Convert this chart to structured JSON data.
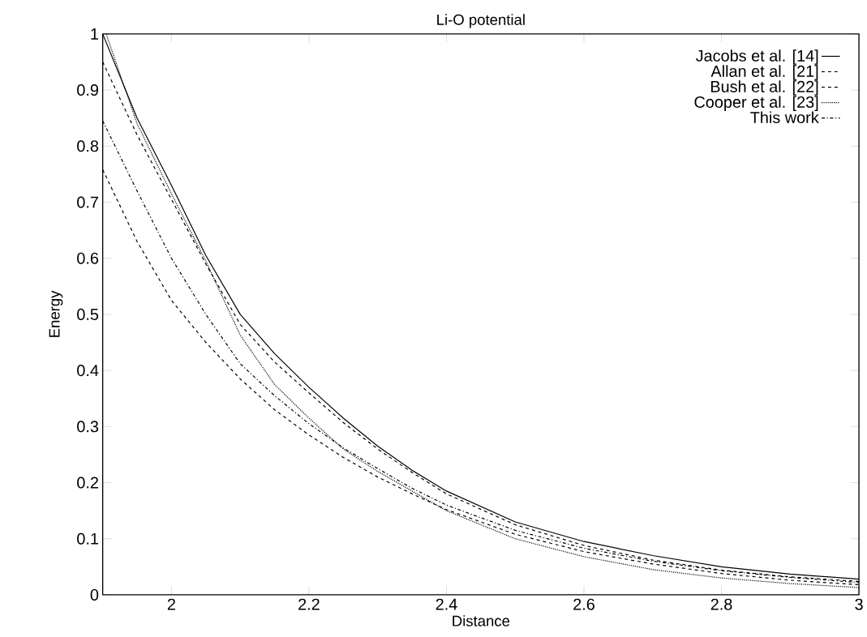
{
  "chart_data": {
    "type": "line",
    "title": "Li-O potential",
    "xlabel": "Distance",
    "ylabel": "Energy",
    "xlim": [
      1.9,
      3
    ],
    "ylim": [
      0,
      1
    ],
    "xticks": [
      2,
      2.2,
      2.4,
      2.6,
      2.8,
      3
    ],
    "yticks": [
      0,
      0.1,
      0.2,
      0.3,
      0.4,
      0.5,
      0.6,
      0.7,
      0.8,
      0.9,
      1
    ],
    "grid": false,
    "legend": "top right",
    "marker": "none",
    "x": [
      1.9,
      1.95,
      2.0,
      2.05,
      2.1,
      2.15,
      2.2,
      2.25,
      2.3,
      2.35,
      2.4,
      2.5,
      2.6,
      2.7,
      2.8,
      2.9,
      3.0
    ],
    "series": [
      {
        "name": "Jacobs et al. [14]",
        "color": "#000000",
        "line_style": "solid",
        "values": [
          1.0,
          0.85,
          0.73,
          0.605,
          0.5,
          0.43,
          0.37,
          0.315,
          0.265,
          0.222,
          0.185,
          0.13,
          0.095,
          0.07,
          0.05,
          0.037,
          0.028
        ]
      },
      {
        "name": "Allan et al. [21]",
        "color": "#000000",
        "line_style": "dashed",
        "values": [
          0.95,
          0.82,
          0.705,
          0.59,
          0.482,
          0.415,
          0.36,
          0.307,
          0.26,
          0.218,
          0.18,
          0.125,
          0.088,
          0.062,
          0.044,
          0.032,
          0.024
        ]
      },
      {
        "name": "Bush et al. [22]",
        "color": "#000000",
        "line_style": "dashed",
        "values": [
          0.758,
          0.63,
          0.525,
          0.45,
          0.385,
          0.33,
          0.285,
          0.245,
          0.21,
          0.18,
          0.152,
          0.108,
          0.077,
          0.055,
          0.038,
          0.026,
          0.018
        ]
      },
      {
        "name": "Cooper et al. [23]",
        "color": "#000000",
        "line_style": "dotted",
        "x": [
          1.905,
          1.95,
          2.0,
          2.05,
          2.1,
          2.15,
          2.2,
          2.25,
          2.3,
          2.35,
          2.4,
          2.5,
          2.6,
          2.7,
          2.8,
          2.9,
          3.0
        ],
        "values": [
          1.0,
          0.84,
          0.715,
          0.595,
          0.463,
          0.375,
          0.315,
          0.26,
          0.22,
          0.185,
          0.15,
          0.1,
          0.068,
          0.045,
          0.03,
          0.02,
          0.013
        ]
      },
      {
        "name": "This work",
        "color": "#000000",
        "line_style": "dashdot",
        "values": [
          0.845,
          0.72,
          0.6,
          0.5,
          0.412,
          0.355,
          0.305,
          0.262,
          0.225,
          0.19,
          0.16,
          0.115,
          0.083,
          0.06,
          0.043,
          0.031,
          0.022
        ]
      }
    ]
  }
}
